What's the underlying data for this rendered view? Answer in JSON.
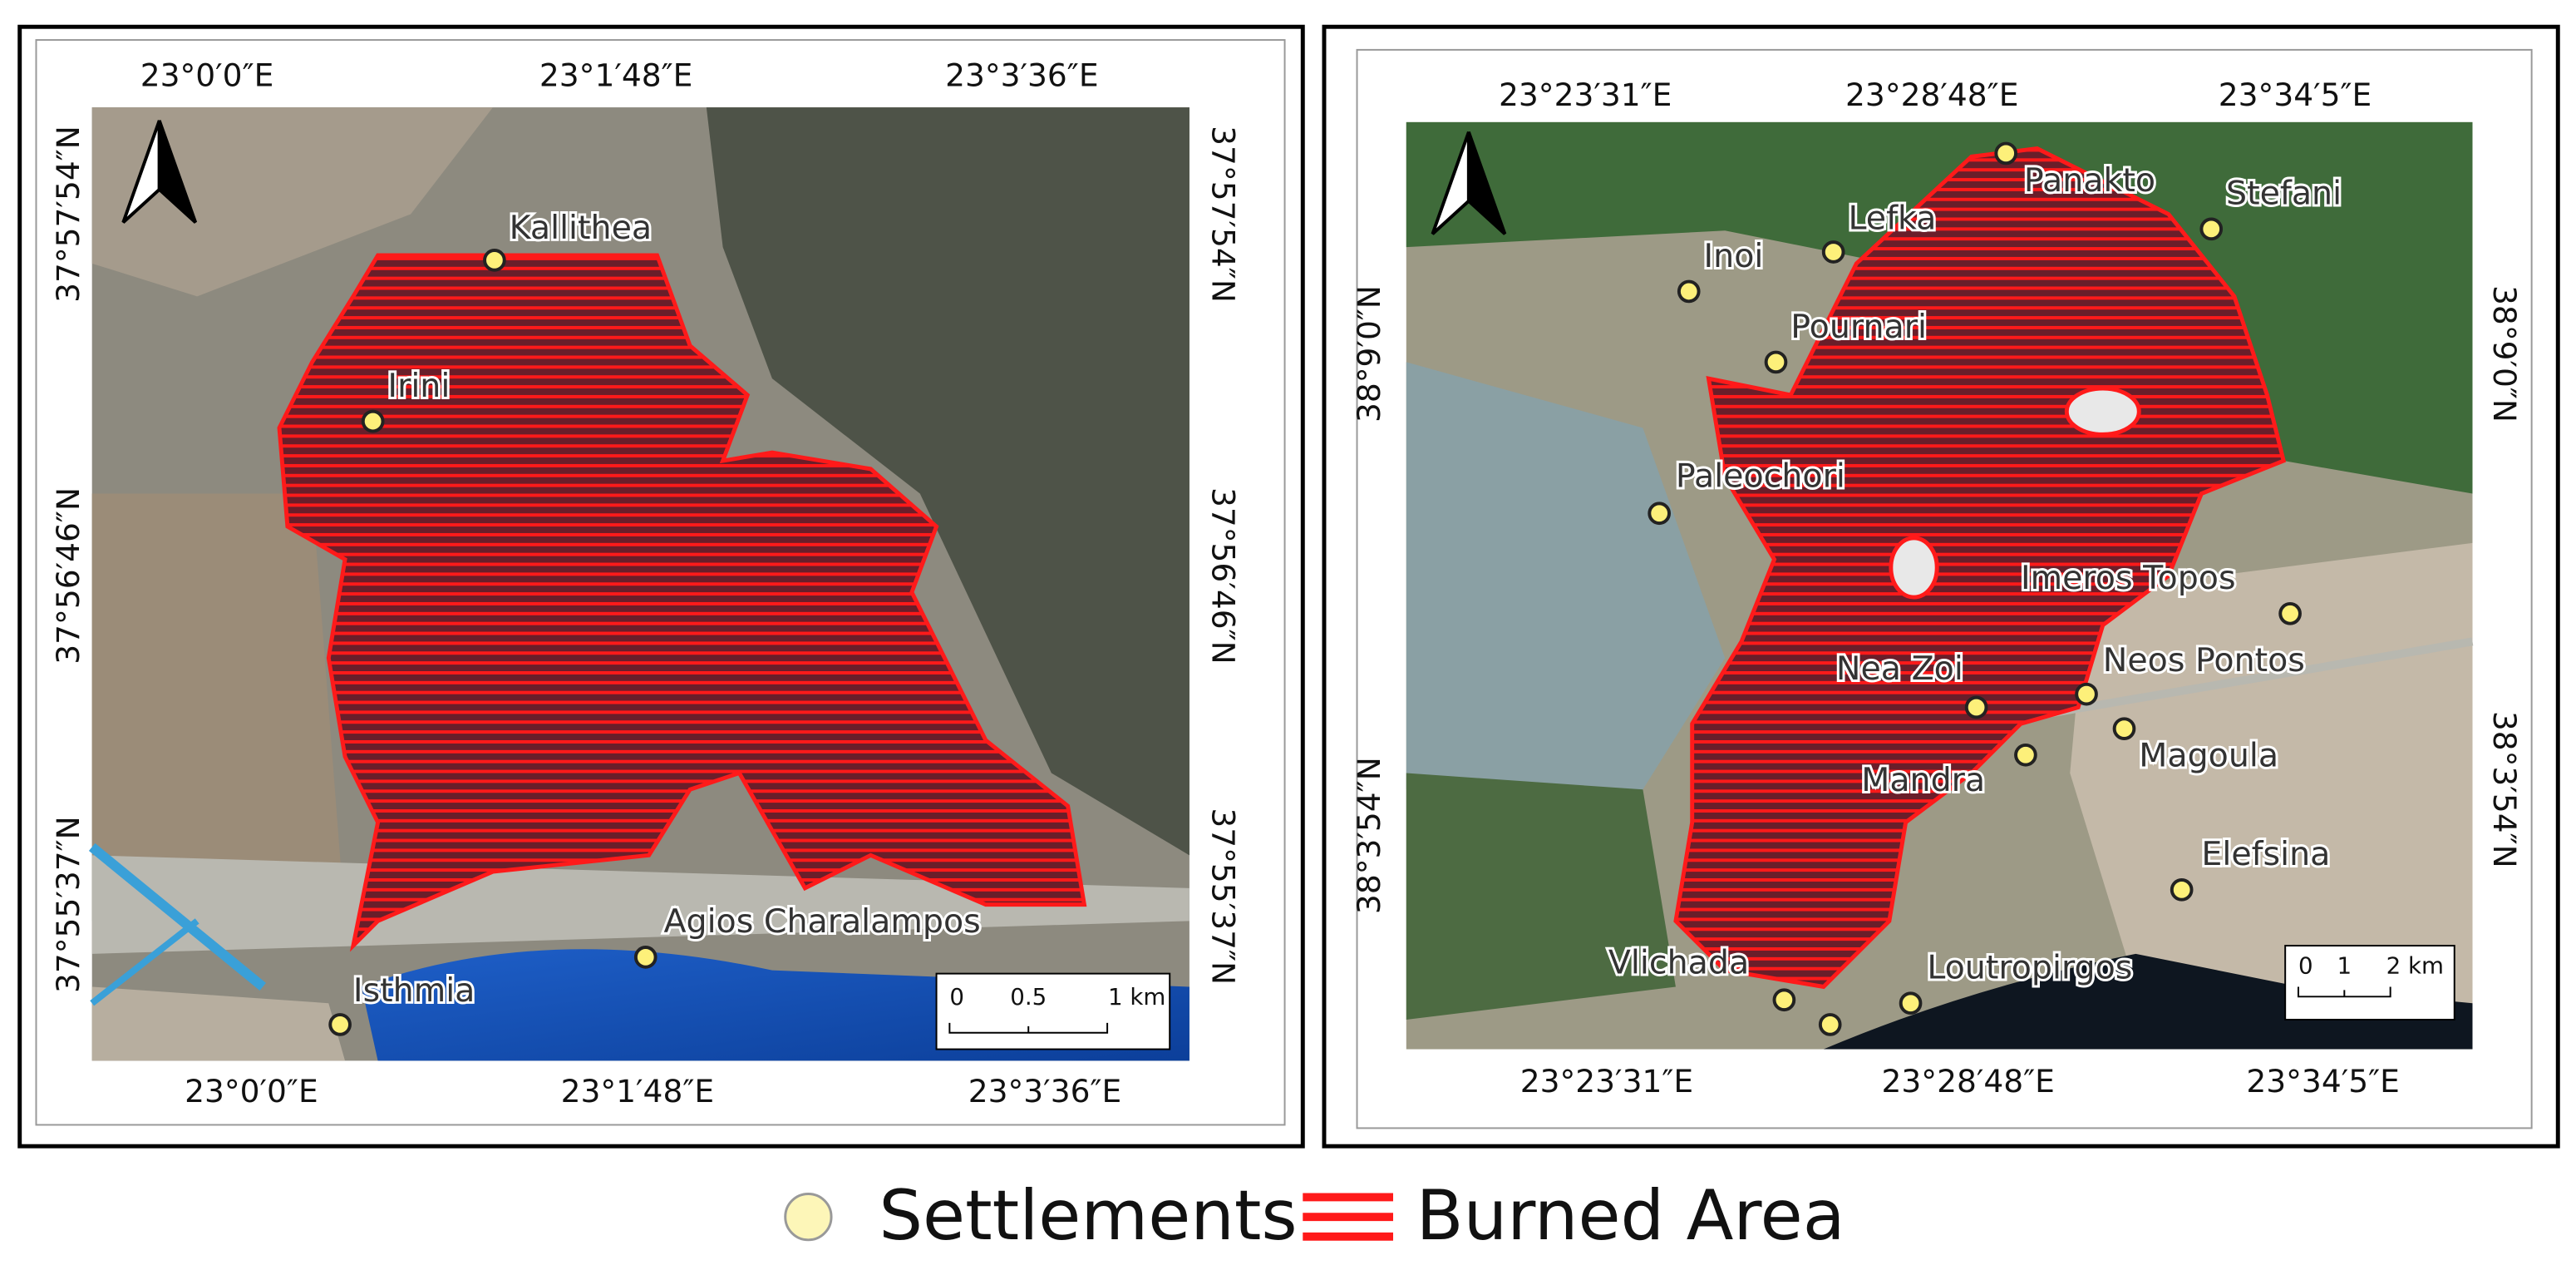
{
  "panels": [
    {
      "top_labels": [
        "23°0′0″E",
        "23°1′48″E",
        "23°3′36″E"
      ],
      "bottom_labels": [
        "23°0′0″E",
        "23°1′48″E",
        "23°3′36″E"
      ],
      "left_labels": [
        "37°57′54″N",
        "37°56′46″N",
        "37°55′37″N"
      ],
      "right_labels": [
        "37°57′54″N",
        "37°56′46″N",
        "37°55′37″N"
      ],
      "places": [
        "Kallithea",
        "Irini",
        "Agios Charalampos",
        "Isthmia"
      ],
      "scale_bar": [
        "0",
        "0.5",
        "1 km"
      ]
    },
    {
      "top_labels": [
        "23°23′31″E",
        "23°28′48″E",
        "23°34′5″E"
      ],
      "bottom_labels": [
        "23°23′31″E",
        "23°28′48″E",
        "23°34′5″E"
      ],
      "left_labels": [
        "38°9′0″N",
        "38°3′54″N"
      ],
      "right_labels": [
        "38°9′0″N",
        "38°3′54″N"
      ],
      "places": [
        "Panakto",
        "Stefani",
        "Lefka",
        "Inoi",
        "Pournari",
        "Paleochori",
        "Imeros Topos",
        "Neos Pontos",
        "Nea Zoi",
        "Magoula",
        "Mandra",
        "Elefsina",
        "Vlichada",
        "Loutropirgos"
      ],
      "scale_bar": [
        "0",
        "1",
        "2 km"
      ]
    }
  ],
  "legend": [
    "Settlements",
    "Burned Area"
  ]
}
